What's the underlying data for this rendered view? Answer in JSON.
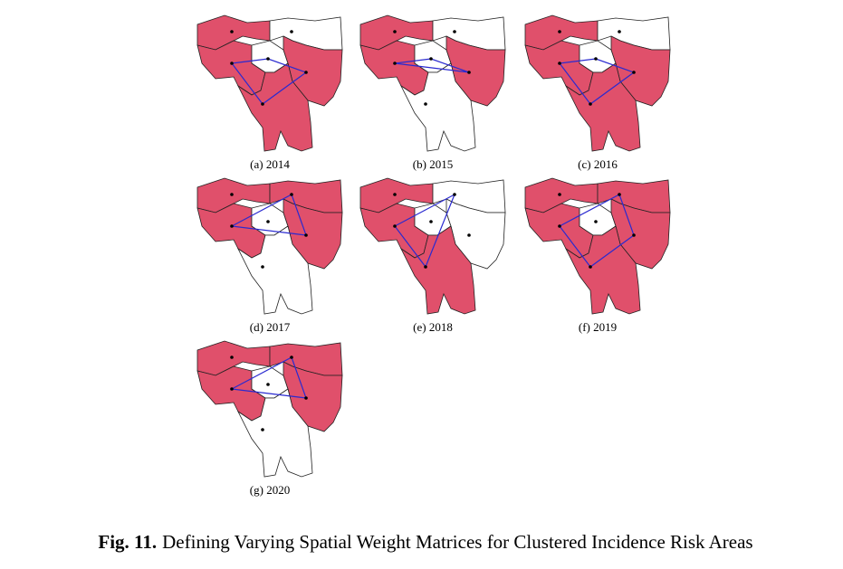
{
  "panels": [
    {
      "caption": "(a) 2014"
    },
    {
      "caption": "(b) 2015"
    },
    {
      "caption": "(c) 2016"
    },
    {
      "caption": "(d) 2017"
    },
    {
      "caption": "(e) 2018"
    },
    {
      "caption": "(f) 2019"
    },
    {
      "caption": "(g) 2020"
    }
  ],
  "figure": {
    "label": "Fig. 11.",
    "caption": "Defining Varying Spatial Weight Matrices for Clustered Incidence Risk Areas"
  }
}
